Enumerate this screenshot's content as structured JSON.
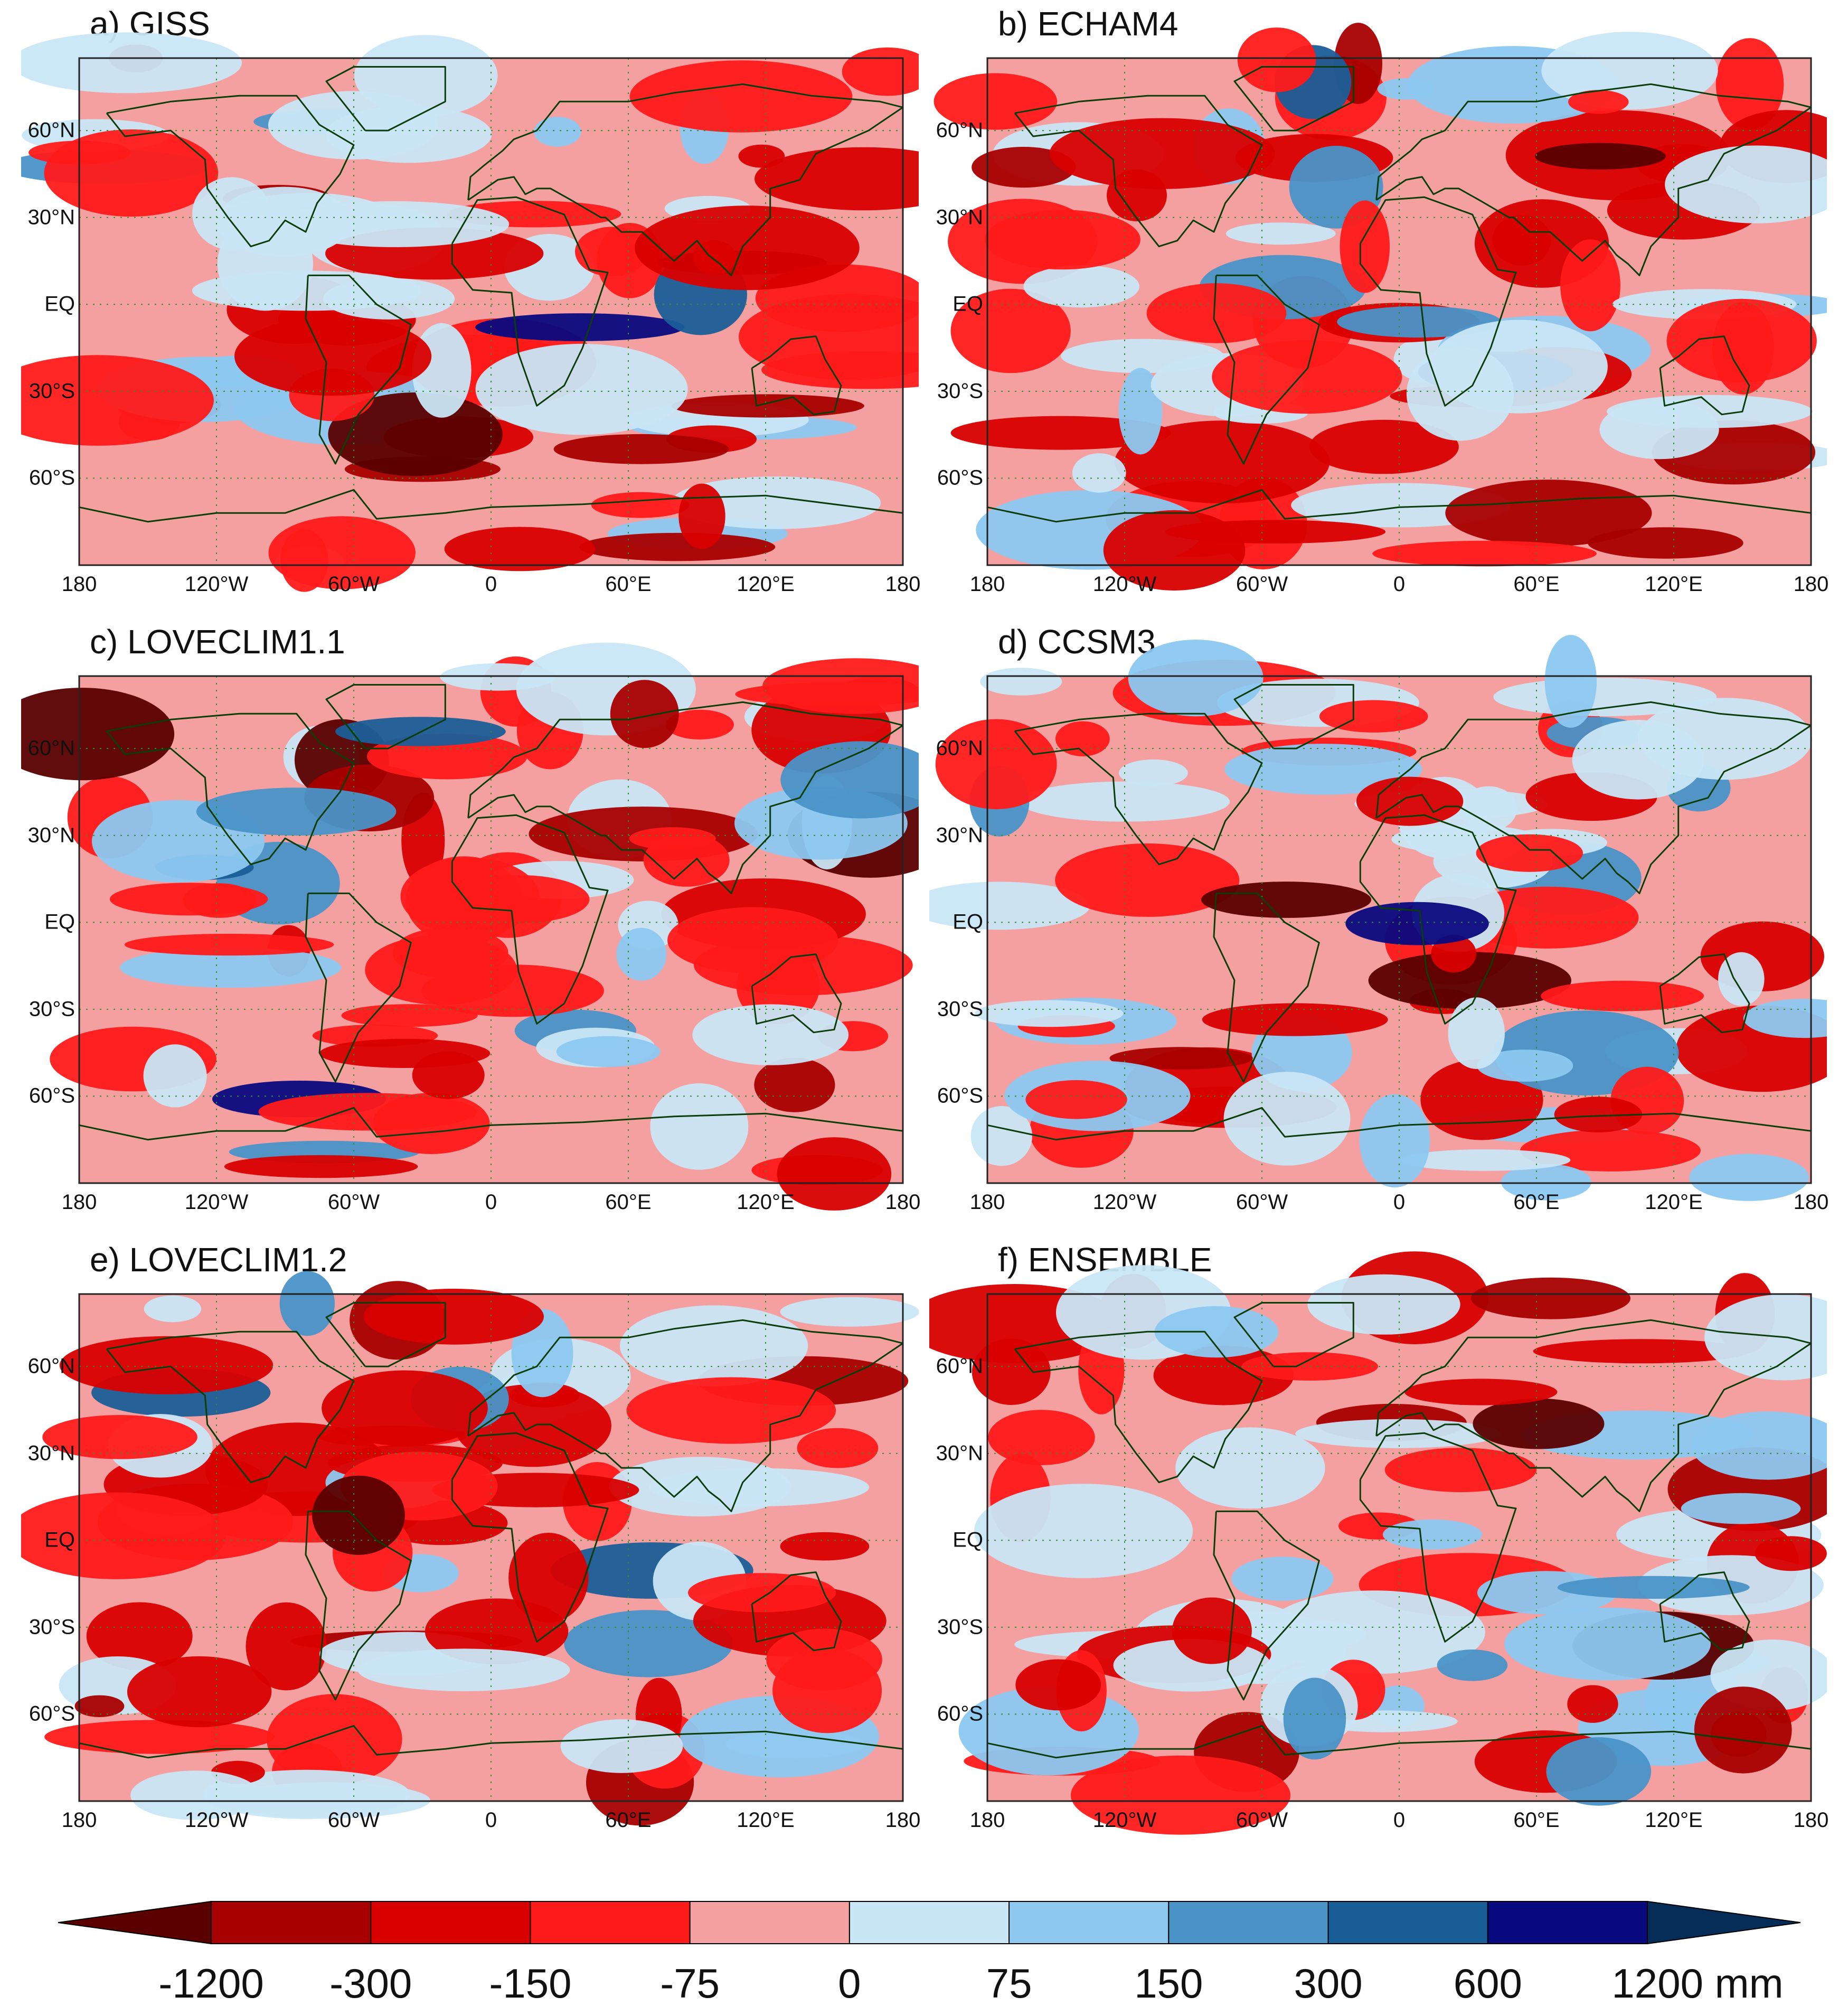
{
  "figure": {
    "panels": [
      {
        "label": "a) GISS"
      },
      {
        "label": "b) ECHAM4"
      },
      {
        "label": "c) LOVECLIM1.1"
      },
      {
        "label": "d) CCSM3"
      },
      {
        "label": "e) LOVECLIM1.2"
      },
      {
        "label": "f) ENSEMBLE"
      }
    ],
    "lat_ticks": [
      "60°N",
      "30°N",
      "EQ",
      "30°S",
      "60°S"
    ],
    "lon_ticks": [
      "180",
      "120°W",
      "60°W",
      "0",
      "60°E",
      "120°E",
      "180"
    ]
  },
  "legend": {
    "unit": "mm",
    "labels": [
      "-1200",
      "-300",
      "-150",
      "-75",
      "0",
      "75",
      "150",
      "300",
      "600",
      "1200 mm"
    ],
    "colors": [
      "#5a0000",
      "#a80000",
      "#d80000",
      "#ff1a1a",
      "#f4a0a0",
      "#c9e6f6",
      "#8cc8f0",
      "#4a94c8",
      "#1a5e98",
      "#0a0a80",
      "#062d58"
    ],
    "ocean_land_line_color": "#0b3d0b"
  }
}
